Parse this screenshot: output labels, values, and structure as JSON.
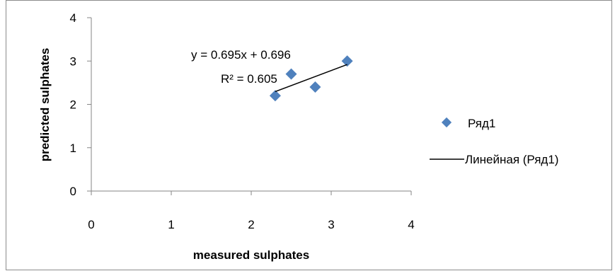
{
  "chart_data": {
    "type": "scatter",
    "xlabel": "measured sulphates",
    "ylabel": "predicted sulphates",
    "xlim": [
      0,
      4
    ],
    "ylim": [
      0,
      4
    ],
    "xticks": [
      0,
      1,
      2,
      3,
      4
    ],
    "yticks": [
      0,
      1,
      2,
      3,
      4
    ],
    "grid": false,
    "legend_position": "right",
    "series": [
      {
        "name": "Ряд1",
        "color": "#4F81BD",
        "marker": "diamond",
        "x": [
          2.3,
          2.5,
          2.8,
          3.2
        ],
        "y": [
          2.2,
          2.7,
          2.4,
          3.0
        ]
      }
    ],
    "trendline": {
      "name": "Линейная (Ряд1)",
      "type": "linear",
      "color": "#000000",
      "slope": 0.695,
      "intercept": 0.696,
      "x_range": [
        2.3,
        3.2
      ],
      "equation": "y = 0.695x + 0.696",
      "r_squared": "R² = 0.605"
    }
  }
}
